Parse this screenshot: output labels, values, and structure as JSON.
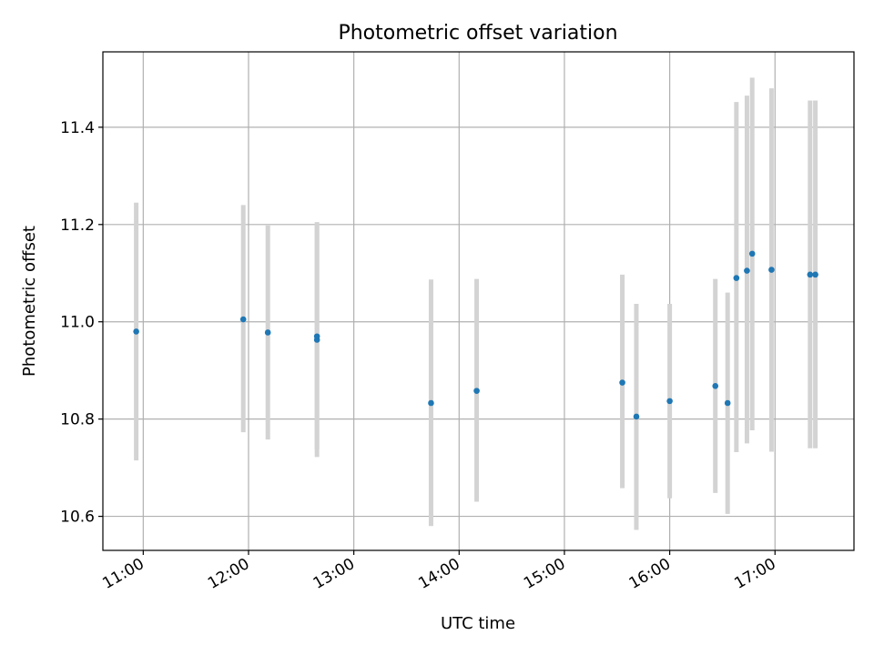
{
  "chart_data": {
    "type": "scatter",
    "title": "Photometric offset variation",
    "xlabel": "UTC time",
    "ylabel": "Photometric offset",
    "xlim": [
      "10:37",
      "17:45"
    ],
    "ylim": [
      10.53,
      11.555
    ],
    "x_ticks": [
      "11:00",
      "12:00",
      "13:00",
      "14:00",
      "15:00",
      "16:00",
      "17:00"
    ],
    "y_ticks": [
      "10.6",
      "10.8",
      "11.0",
      "11.2",
      "11.4"
    ],
    "grid": true,
    "colors": {
      "points": "#1f77b4",
      "error_bars": "#d3d3d3",
      "grid": "#b0b0b0"
    },
    "points": [
      {
        "x": "10:56",
        "y": 10.98,
        "y_low": 10.715,
        "y_high": 11.245
      },
      {
        "x": "11:57",
        "y": 11.005,
        "y_low": 10.773,
        "y_high": 11.24
      },
      {
        "x": "12:11",
        "y": 10.978,
        "y_low": 10.758,
        "y_high": 11.198
      },
      {
        "x": "12:39",
        "y": 10.963,
        "y_low": 10.722,
        "y_high": 11.205
      },
      {
        "x": "12:39",
        "y": 10.97,
        "y_low": 10.738,
        "y_high": 11.2
      },
      {
        "x": "13:44",
        "y": 10.833,
        "y_low": 10.58,
        "y_high": 11.087
      },
      {
        "x": "14:10",
        "y": 10.858,
        "y_low": 10.63,
        "y_high": 11.088
      },
      {
        "x": "15:33",
        "y": 10.875,
        "y_low": 10.658,
        "y_high": 11.097
      },
      {
        "x": "15:41",
        "y": 10.805,
        "y_low": 10.572,
        "y_high": 11.037
      },
      {
        "x": "16:00",
        "y": 10.837,
        "y_low": 10.637,
        "y_high": 11.037
      },
      {
        "x": "16:26",
        "y": 10.868,
        "y_low": 10.648,
        "y_high": 11.088
      },
      {
        "x": "16:33",
        "y": 10.833,
        "y_low": 10.605,
        "y_high": 11.06
      },
      {
        "x": "16:38",
        "y": 11.09,
        "y_low": 10.732,
        "y_high": 11.452
      },
      {
        "x": "16:44",
        "y": 11.105,
        "y_low": 10.75,
        "y_high": 11.465
      },
      {
        "x": "16:47",
        "y": 11.14,
        "y_low": 10.777,
        "y_high": 11.502
      },
      {
        "x": "16:58",
        "y": 11.107,
        "y_low": 10.733,
        "y_high": 11.48
      },
      {
        "x": "17:20",
        "y": 11.097,
        "y_low": 10.74,
        "y_high": 11.455
      },
      {
        "x": "17:23",
        "y": 11.097,
        "y_low": 10.74,
        "y_high": 11.455
      }
    ]
  }
}
